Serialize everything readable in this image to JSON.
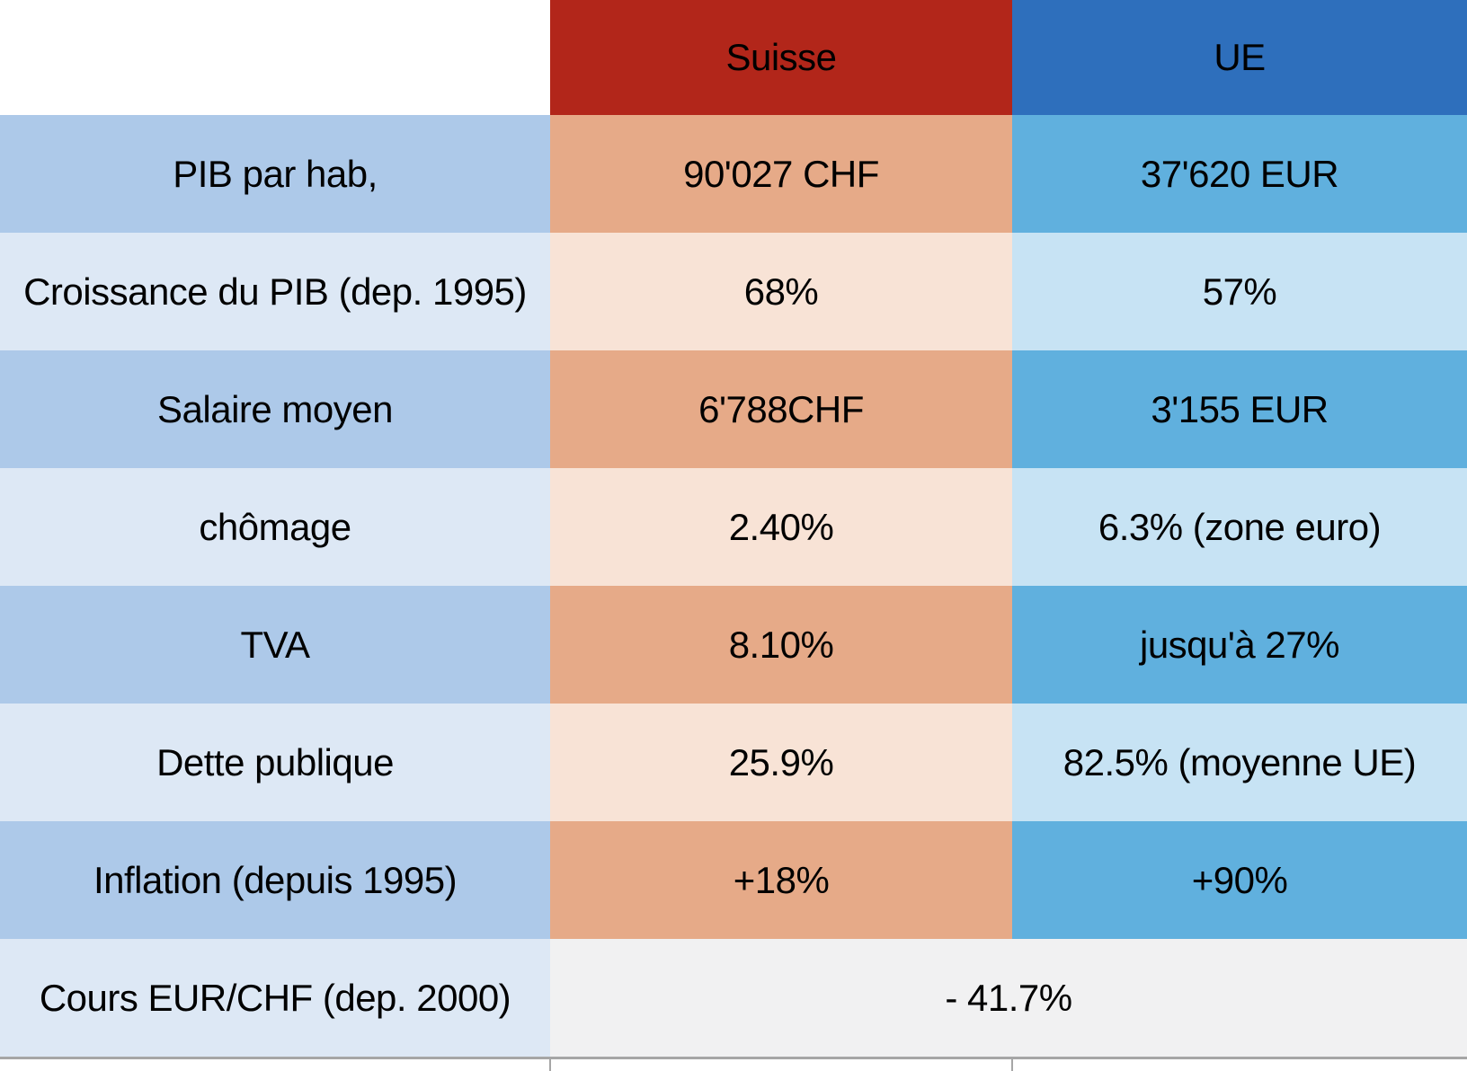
{
  "table": {
    "columns": [
      "Suisse",
      "UE"
    ],
    "rows": [
      {
        "label": "PIB par hab,",
        "suisse": "90'027 CHF",
        "ue": "37'620 EUR"
      },
      {
        "label": "Croissance du PIB (dep. 1995)",
        "suisse": "68%",
        "ue": "57%"
      },
      {
        "label": "Salaire moyen",
        "suisse": "6'788CHF",
        "ue": "3'155 EUR"
      },
      {
        "label": "chômage",
        "suisse": "2.40%",
        "ue": "6.3% (zone euro)"
      },
      {
        "label": "TVA",
        "suisse": "8.10%",
        "ue": "jusqu'à 27%"
      },
      {
        "label": "Dette publique",
        "suisse": "25.9%",
        "ue": "82.5% (moyenne UE)"
      },
      {
        "label": "Inflation (depuis 1995)",
        "suisse": "+18%",
        "ue": "+90%"
      }
    ],
    "footer_row": {
      "label": "Cours EUR/CHF (dep. 2000)",
      "merged_value": "- 41.7%"
    }
  },
  "chart_data": {
    "type": "table",
    "title": "",
    "columns": [
      "",
      "Suisse",
      "UE"
    ],
    "rows": [
      [
        "PIB par hab,",
        "90'027 CHF",
        "37'620 EUR"
      ],
      [
        "Croissance du PIB (dep. 1995)",
        "68%",
        "57%"
      ],
      [
        "Salaire moyen",
        "6'788CHF",
        "3'155 EUR"
      ],
      [
        "chômage",
        "2.40%",
        "6.3% (zone euro)"
      ],
      [
        "TVA",
        "8.10%",
        "jusqu'à 27%"
      ],
      [
        "Dette publique",
        "25.9%",
        "82.5% (moyenne UE)"
      ],
      [
        "Inflation (depuis 1995)",
        "+18%",
        "+90%"
      ],
      [
        "Cours EUR/CHF (dep. 2000)",
        "- 41.7%",
        ""
      ]
    ],
    "layout_hints": {
      "header_fill": [
        "none",
        "red",
        "blue"
      ],
      "body_striping": "alternating light/dark per row",
      "last_row_value_merged_across_columns": true
    }
  },
  "colors": {
    "white": "#ffffff",
    "header_red": "#b2261a",
    "header_blue": "#2e6fbc",
    "label_dark": "#adc9e9",
    "label_light": "#dde8f5",
    "suisse_dark": "#e6aa88",
    "suisse_light": "#f8e3d6",
    "ue_dark": "#60b0de",
    "ue_light": "#c7e3f4",
    "merged_gray": "#f1f1f2",
    "rule_gray": "#a6a6a6",
    "text": "#000000"
  }
}
